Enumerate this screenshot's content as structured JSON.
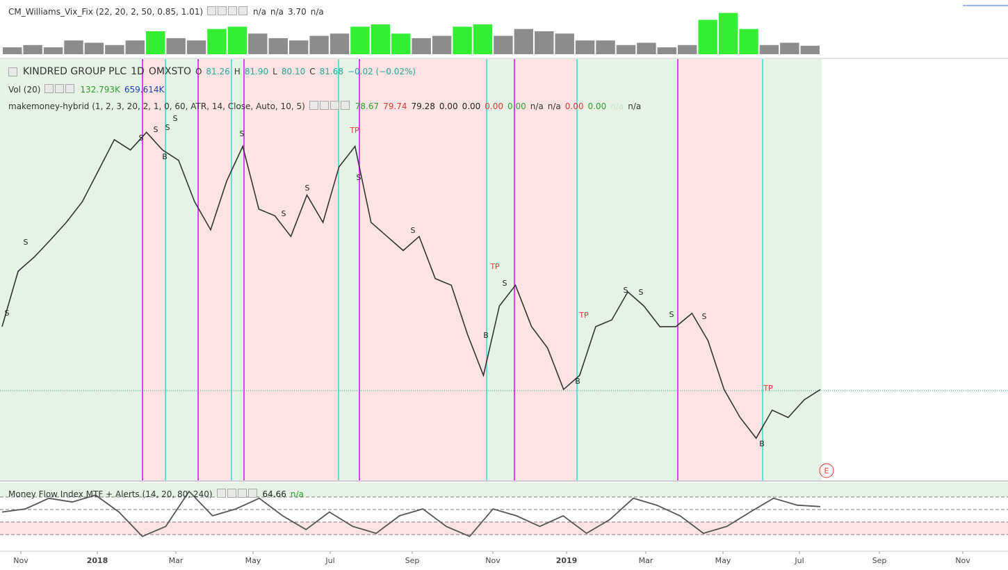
{
  "vix": {
    "title": "CM_Williams_Vix_Fix (22, 20, 2, 50, 0.85, 1.01)",
    "readouts": [
      "n/a",
      "n/a",
      "3.70",
      "n/a"
    ],
    "ylim": [
      0,
      20
    ],
    "series": [
      {
        "name": "normal",
        "color": "#8c8c8c",
        "values": [
          3,
          4,
          3,
          6,
          5,
          4,
          6,
          null,
          7,
          6,
          null,
          null,
          9,
          7,
          6,
          8,
          9,
          null,
          null,
          null,
          7,
          8,
          null,
          null,
          8,
          11,
          10,
          9,
          6,
          6,
          4,
          5,
          3,
          4,
          null,
          null,
          null,
          4,
          5,
          3.7
        ]
      },
      {
        "name": "spike",
        "color": "#33ee33",
        "values": [
          null,
          null,
          null,
          null,
          null,
          null,
          null,
          10,
          null,
          null,
          11,
          12,
          null,
          null,
          null,
          null,
          null,
          12,
          13,
          9,
          null,
          null,
          12,
          13,
          null,
          null,
          null,
          null,
          null,
          null,
          null,
          null,
          null,
          null,
          15,
          18,
          11,
          null,
          null,
          null
        ]
      }
    ]
  },
  "symbol": {
    "name": "KINDRED GROUP PLC",
    "interval": "1D",
    "exchange": "OMXSTO",
    "ohlc": [
      {
        "label": "O",
        "value": "81.26"
      },
      {
        "label": "H",
        "value": "81.90"
      },
      {
        "label": "L",
        "value": "80.10"
      },
      {
        "label": "C",
        "value": "81.68"
      }
    ],
    "change": "−0.02 (−0.02%)"
  },
  "volume": {
    "title": "Vol (20)",
    "readouts": [
      "132.793K",
      "659.614K"
    ]
  },
  "hybrid": {
    "title": "makemoney-hybrid (1, 2, 3, 20, 2, 1, 0, 60, ATR, 14, Close, Auto, 10, 5)",
    "readouts": [
      "78.67",
      "79.74",
      "79.28",
      "0.00",
      "0.00",
      "0.00",
      "0.00",
      "n/a",
      "n/a",
      "0.00",
      "0.00",
      "n/a",
      "n/a"
    ]
  },
  "price": {
    "ylim": [
      69.4,
      126.4
    ],
    "color": "#333333",
    "close": [
      90.2,
      97.7,
      99.6,
      101.9,
      104.3,
      107.1,
      111.3,
      115.5,
      114.1,
      116.5,
      114.1,
      112.7,
      107.1,
      103.3,
      109.9,
      114.6,
      106.1,
      105.2,
      102.4,
      108.0,
      104.3,
      111.8,
      114.6,
      104.3,
      102.4,
      100.5,
      102.4,
      96.7,
      95.8,
      89.2,
      83.6,
      93.0,
      95.8,
      90.2,
      87.3,
      81.7,
      83.6,
      90.2,
      91.1,
      94.9,
      93.0,
      90.2,
      90.2,
      92.0,
      88.3,
      81.7,
      77.9,
      75.1,
      78.9,
      77.9,
      80.3,
      81.68
    ]
  },
  "markers": [
    "S",
    "S",
    "S",
    "S",
    "S",
    "S",
    "B",
    "S",
    "S",
    "S",
    "TP",
    "S",
    "S",
    "TP",
    "S",
    "B",
    "TP",
    "S",
    "S",
    "S",
    "S",
    "B",
    "TP",
    "B",
    "E"
  ],
  "mfi": {
    "title": "Money Flow Index MTF + Alerts (14, 20, 80, 240)",
    "readouts": [
      "64.66",
      "n/a"
    ],
    "ylim": [
      0,
      100
    ],
    "levels": [
      80,
      60,
      40,
      20
    ],
    "color": "#555555",
    "values": [
      56,
      61,
      78,
      72,
      83,
      56,
      17,
      33,
      89,
      50,
      61,
      78,
      50,
      28,
      56,
      33,
      22,
      50,
      61,
      33,
      17,
      61,
      50,
      33,
      50,
      22,
      44,
      78,
      67,
      50,
      22,
      33,
      56,
      78,
      67,
      64.66
    ]
  },
  "time_axis": [
    "Nov",
    "2018",
    "Mar",
    "May",
    "Jul",
    "Sep",
    "Nov",
    "2019",
    "Mar",
    "May",
    "Jul",
    "Sep",
    "Nov"
  ]
}
